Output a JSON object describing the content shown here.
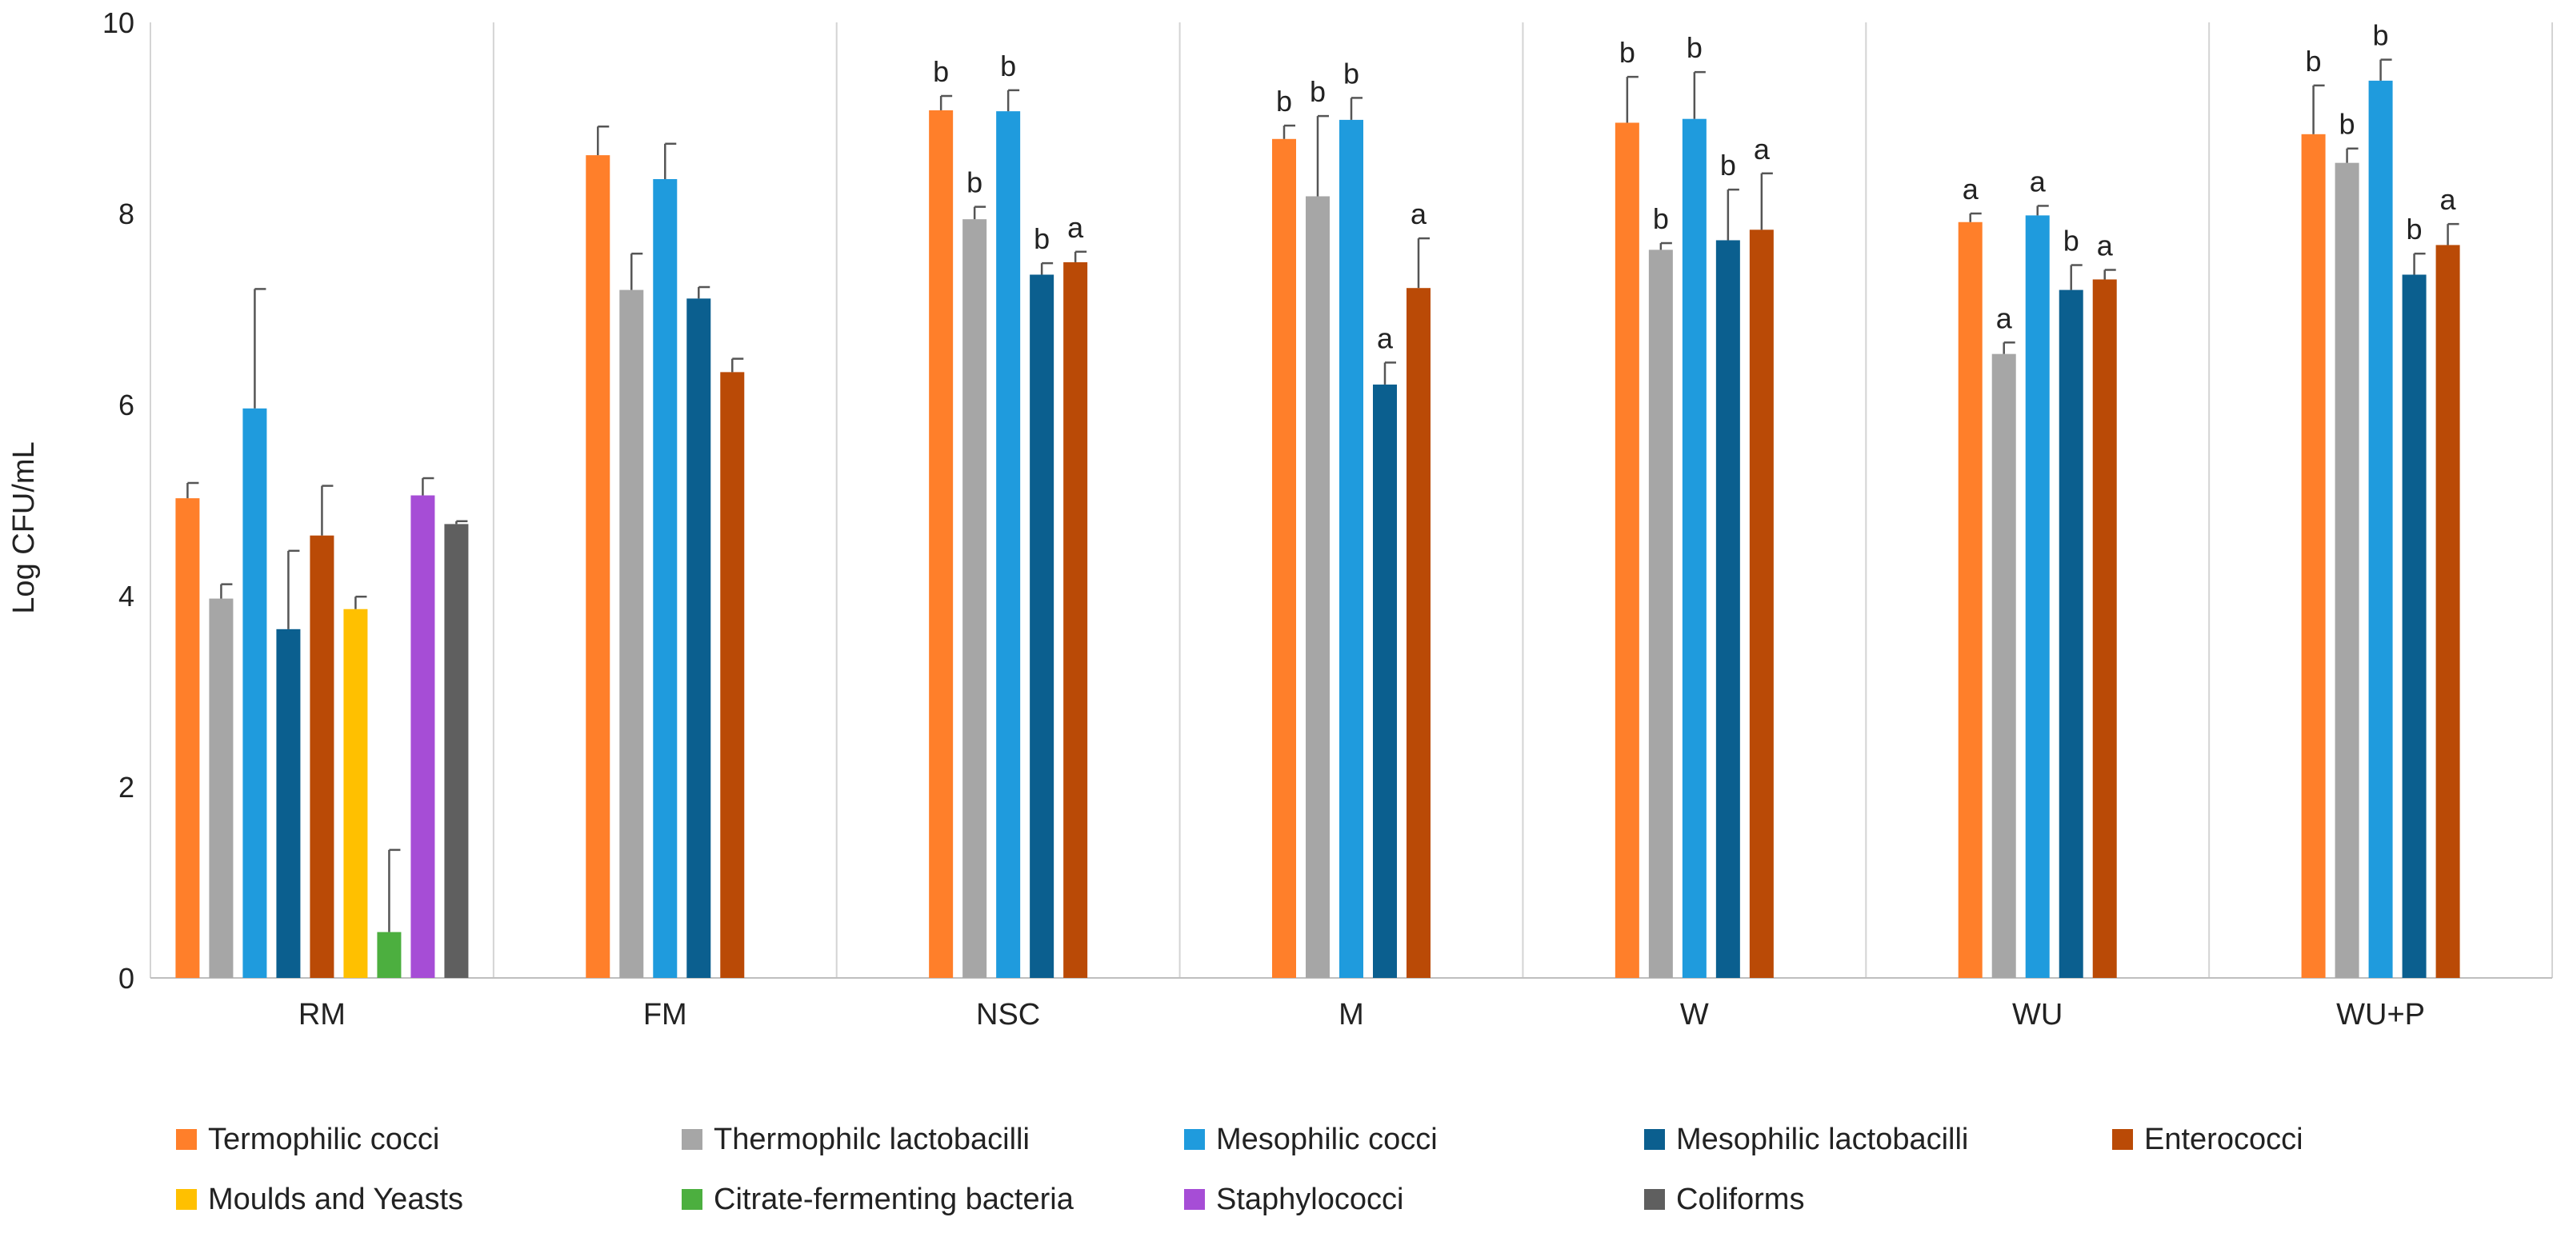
{
  "chart_data": {
    "type": "bar",
    "title": "",
    "xlabel": "",
    "ylabel": "Log CFU/mL",
    "ylim": [
      0,
      10
    ],
    "yticks": [
      "0",
      "2",
      "4",
      "6",
      "8",
      "10"
    ],
    "ytick_values": [
      0,
      2,
      4,
      6,
      8,
      10
    ],
    "grid": false,
    "legend_position": "bottom",
    "categories": [
      "RM",
      "FM",
      "NSC",
      "M",
      "W",
      "WU",
      "WU+P"
    ],
    "series": [
      {
        "name": "Termophilic cocci",
        "color": "#FF7F2A",
        "values": [
          5.02,
          8.61,
          9.08,
          8.78,
          8.95,
          7.91,
          8.83
        ],
        "errors": [
          0.16,
          0.3,
          0.15,
          0.14,
          0.48,
          0.09,
          0.51
        ],
        "labels": [
          "",
          "",
          "b",
          "b",
          "b",
          "a",
          "b"
        ]
      },
      {
        "name": "Thermophilc lactobacilli",
        "color": "#A6A6A6",
        "values": [
          3.97,
          7.2,
          7.94,
          8.18,
          7.62,
          6.53,
          8.53
        ],
        "errors": [
          0.15,
          0.38,
          0.13,
          0.84,
          0.07,
          0.12,
          0.15
        ],
        "labels": [
          "",
          "",
          "b",
          "b",
          "b",
          "a",
          "b"
        ]
      },
      {
        "name": "Mesophilic cocci",
        "color": "#1F9BDD",
        "values": [
          5.96,
          8.36,
          9.07,
          8.98,
          8.99,
          7.98,
          9.39
        ],
        "errors": [
          1.25,
          0.37,
          0.22,
          0.23,
          0.49,
          0.1,
          0.22
        ],
        "labels": [
          "",
          "",
          "b",
          "b",
          "b",
          "a",
          "b"
        ]
      },
      {
        "name": "Mesophilic lactobacilli",
        "color": "#0B5F8F",
        "values": [
          3.65,
          7.11,
          7.36,
          6.21,
          7.72,
          7.2,
          7.36
        ],
        "errors": [
          0.82,
          0.12,
          0.12,
          0.23,
          0.53,
          0.26,
          0.22
        ],
        "labels": [
          "",
          "",
          "b",
          "a",
          "b",
          "b",
          "b"
        ]
      },
      {
        "name": "Enterococci",
        "color": "#BA4A06",
        "values": [
          4.63,
          6.34,
          7.49,
          7.22,
          7.83,
          7.31,
          7.67
        ],
        "errors": [
          0.52,
          0.14,
          0.11,
          0.52,
          0.59,
          0.1,
          0.22
        ],
        "labels": [
          "",
          "",
          "a",
          "a",
          "a",
          "a",
          "a"
        ]
      },
      {
        "name": "Moulds and Yeasts",
        "color": "#FFC000",
        "values": [
          3.86,
          null,
          null,
          null,
          null,
          null,
          null
        ],
        "errors": [
          0.13,
          null,
          null,
          null,
          null,
          null,
          null
        ],
        "labels": [
          "",
          "",
          "",
          "",
          "",
          "",
          ""
        ]
      },
      {
        "name": "Citrate-fermenting bacteria",
        "color": "#4CAF3F",
        "values": [
          0.48,
          null,
          null,
          null,
          null,
          null,
          null
        ],
        "errors": [
          0.86,
          null,
          null,
          null,
          null,
          null,
          null
        ],
        "labels": [
          "",
          "",
          "",
          "",
          "",
          "",
          ""
        ]
      },
      {
        "name": "Staphylococci",
        "color": "#A64DD6",
        "values": [
          5.05,
          null,
          null,
          null,
          null,
          null,
          null
        ],
        "errors": [
          0.18,
          null,
          null,
          null,
          null,
          null,
          null
        ],
        "labels": [
          "",
          "",
          "",
          "",
          "",
          "",
          ""
        ]
      },
      {
        "name": "Coliforms",
        "color": "#5F5F5F",
        "values": [
          4.75,
          null,
          null,
          null,
          null,
          null,
          null
        ],
        "errors": [
          0.03,
          null,
          null,
          null,
          null,
          null,
          null
        ],
        "labels": [
          "",
          "",
          "",
          "",
          "",
          "",
          ""
        ]
      }
    ]
  }
}
